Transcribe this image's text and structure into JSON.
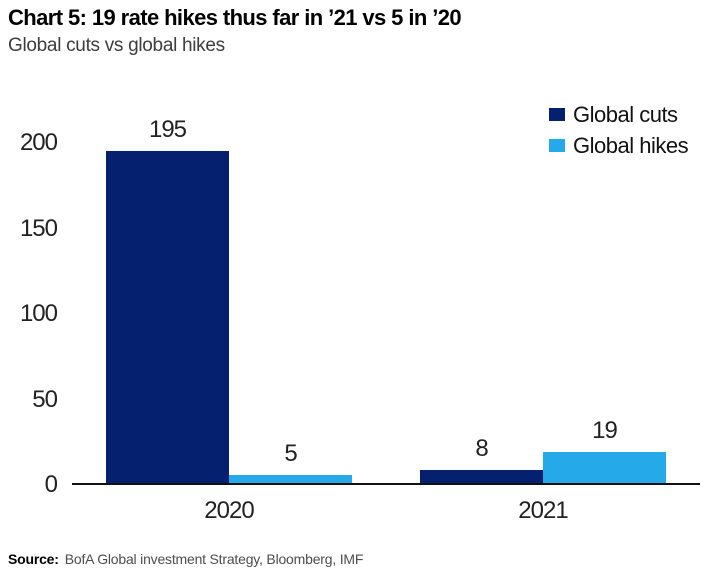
{
  "chart_data": {
    "type": "bar",
    "title": "Chart 5: 19 rate hikes thus far in ’21 vs 5 in ’20",
    "subtitle": "Global cuts vs global hikes",
    "categories": [
      "2020",
      "2021"
    ],
    "series": [
      {
        "name": "Global cuts",
        "color": "#05206F",
        "values": [
          195,
          8
        ]
      },
      {
        "name": "Global hikes",
        "color": "#26A9E8",
        "values": [
          5,
          19
        ]
      }
    ],
    "yticks": [
      0,
      50,
      100,
      150,
      200
    ],
    "ylim": [
      0,
      200
    ],
    "xlabel": "",
    "ylabel": "",
    "grid": false,
    "show_bar_value_labels": true,
    "legend_position": "top-right",
    "axis_line_color": "#111111"
  },
  "footer": {
    "source_label": "Source:",
    "source_text": "BofA Global investment Strategy, Bloomberg, IMF"
  }
}
